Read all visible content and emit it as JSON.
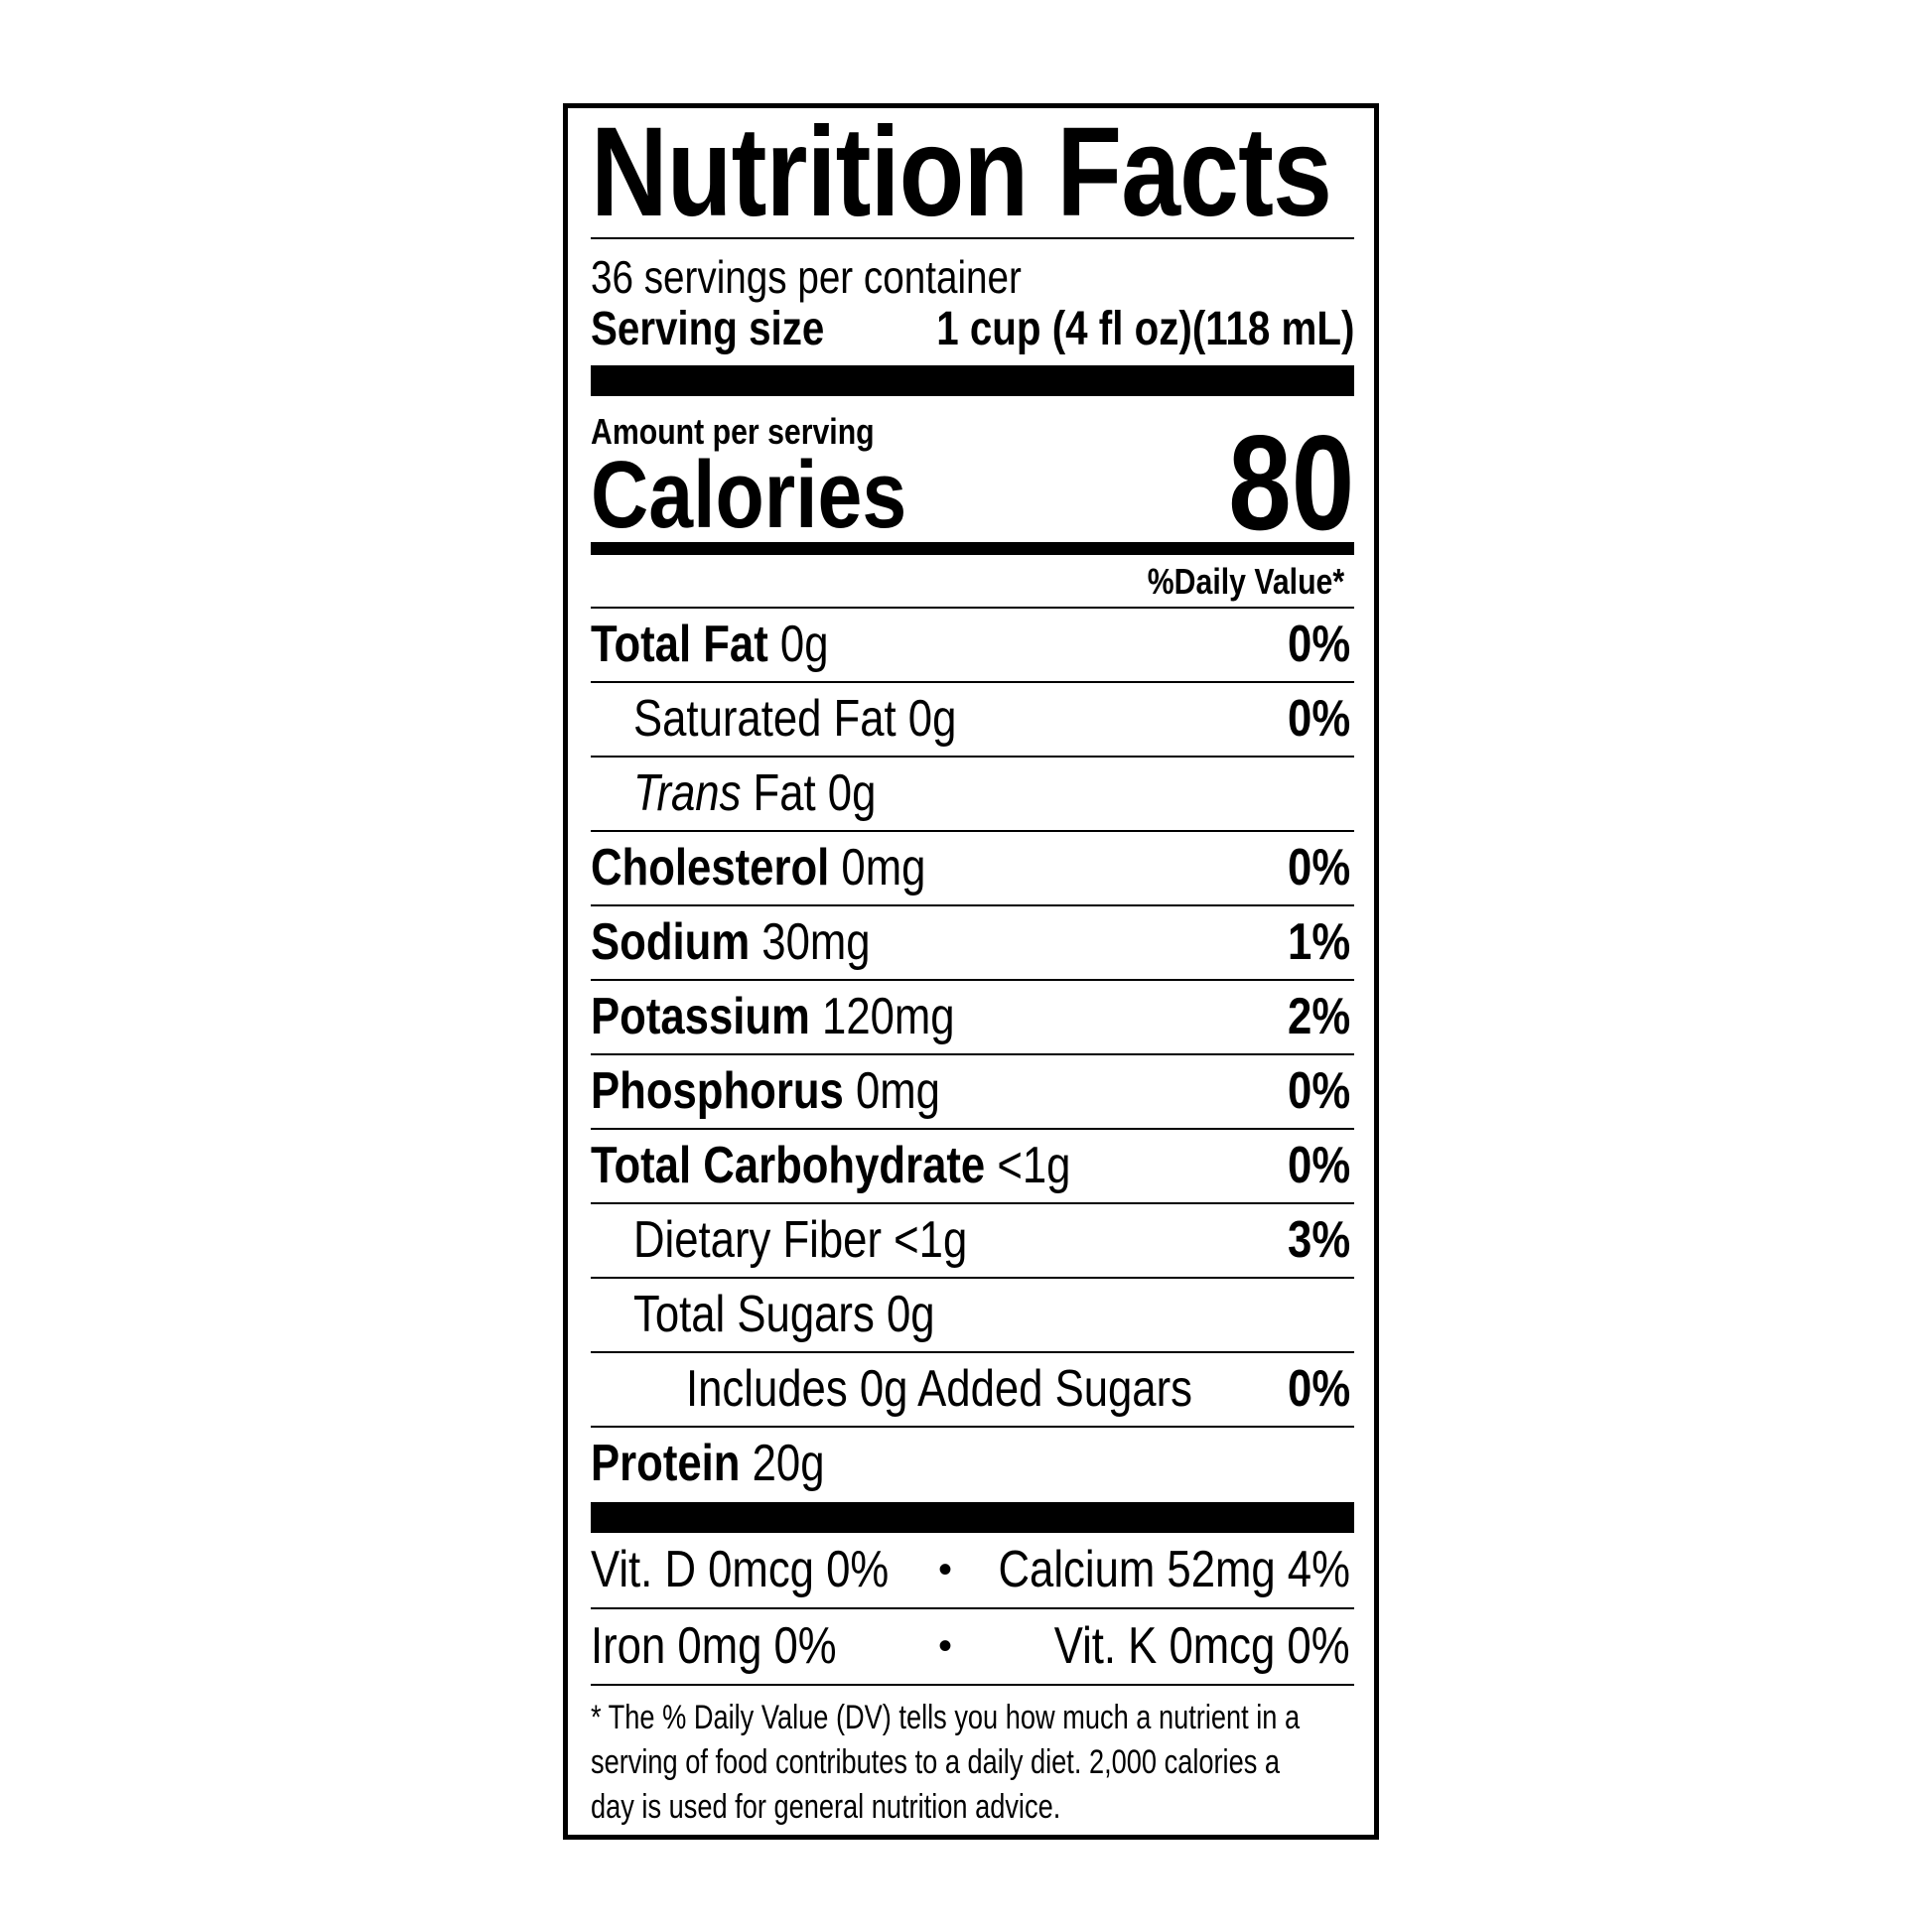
{
  "title": "Nutrition Facts",
  "servings_per_container": "36 servings per container",
  "serving_size": {
    "label": "Serving size",
    "value": "1 cup (4 fl oz)(118 mL)"
  },
  "amount_per_serving": "Amount per serving",
  "calories": {
    "label": "Calories",
    "value": "80"
  },
  "daily_value_header": "%Daily Value*",
  "nutrients": [
    {
      "name": "Total Fat",
      "amount": "0g",
      "dv": "0%"
    },
    {
      "name": "Saturated Fat",
      "amount": "0g",
      "dv": "0%"
    },
    {
      "name_italic": "Trans",
      "name": "Fat",
      "amount": "0g"
    },
    {
      "name": "Cholesterol",
      "amount": "0mg",
      "dv": "0%"
    },
    {
      "name": "Sodium",
      "amount": "30mg",
      "dv": "1%"
    },
    {
      "name": "Potassium",
      "amount": "120mg",
      "dv": "2%"
    },
    {
      "name": "Phosphorus",
      "amount": "0mg",
      "dv": "0%"
    },
    {
      "name": "Total Carbohydrate",
      "amount": "<1g",
      "dv": "0%"
    },
    {
      "name": "Dietary Fiber",
      "amount": "<1g",
      "dv": "3%"
    },
    {
      "name": "Total Sugars",
      "amount": "0g"
    },
    {
      "name": "Includes 0g Added Sugars",
      "dv": "0%"
    },
    {
      "name": "Protein",
      "amount": "20g"
    }
  ],
  "micronutrients": [
    {
      "left": "Vit. D 0mcg 0%",
      "separator": "•",
      "right": "Calcium 52mg 4%"
    },
    {
      "left": "Iron 0mg 0%",
      "separator": "•",
      "right": "Vit. K 0mcg 0%"
    }
  ],
  "footnote": "* The % Daily Value (DV) tells you how much a nutrient in a serving of food contributes to a daily diet. 2,000 calories a day is used for general nutrition advice."
}
